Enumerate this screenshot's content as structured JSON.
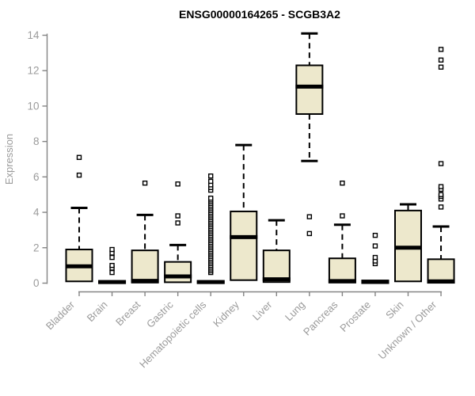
{
  "chart_data": {
    "type": "boxplot",
    "title": "ENSG00000164265 - SCGB3A2",
    "xlabel": "",
    "ylabel": "Expression",
    "ylim": [
      0,
      14
    ],
    "yticks": [
      0,
      2,
      4,
      6,
      8,
      10,
      12,
      14
    ],
    "grid": "off",
    "legend": "none",
    "box_fill": "#EDE8CC",
    "box_stroke": "#000000",
    "axis_color": "#848484",
    "label_color": "#9b9b9b",
    "title_color": "#000000",
    "categories": [
      "Bladder",
      "Brain",
      "Breast",
      "Gastric",
      "Hematopoietic cells",
      "Kidney",
      "Liver",
      "Lung",
      "Pancreas",
      "Prostate",
      "Skin",
      "Unknown / Other"
    ],
    "series": [
      {
        "name": "Bladder",
        "whisker_low": 0.05,
        "q1": 0.1,
        "median": 0.95,
        "q3": 1.9,
        "whisker_high": 4.25,
        "outliers": [
          6.1,
          7.1
        ]
      },
      {
        "name": "Brain",
        "whisker_low": 0,
        "q1": 0,
        "median": 0.06,
        "q3": 0.12,
        "whisker_high": 0.15,
        "outliers": [
          0.6,
          0.85,
          1.0,
          1.45,
          1.7,
          1.9
        ]
      },
      {
        "name": "Breast",
        "whisker_low": 0,
        "q1": 0.03,
        "median": 0.13,
        "q3": 1.85,
        "whisker_high": 3.85,
        "outliers": [
          5.65
        ]
      },
      {
        "name": "Gastric",
        "whisker_low": 0,
        "q1": 0.05,
        "median": 0.38,
        "q3": 1.2,
        "whisker_high": 2.15,
        "outliers": [
          3.4,
          3.8,
          5.6
        ]
      },
      {
        "name": "Hematopoietic cells",
        "whisker_low": 0,
        "q1": 0,
        "median": 0.06,
        "q3": 0.12,
        "whisker_high": 0.15,
        "outliers": [
          0.6,
          0.7,
          0.8,
          0.9,
          1.0,
          1.1,
          1.2,
          1.3,
          1.4,
          1.5,
          1.6,
          1.7,
          1.8,
          1.9,
          2.0,
          2.1,
          2.2,
          2.3,
          2.4,
          2.5,
          2.6,
          2.7,
          2.8,
          2.9,
          3.0,
          3.1,
          3.2,
          3.3,
          3.4,
          3.5,
          3.6,
          3.7,
          3.8,
          3.9,
          4.0,
          4.1,
          4.2,
          4.3,
          4.4,
          4.5,
          4.6,
          4.7,
          4.8,
          5.25,
          5.4,
          5.55,
          5.75,
          6.05
        ]
      },
      {
        "name": "Kidney",
        "whisker_low": 0.15,
        "q1": 0.17,
        "median": 2.6,
        "q3": 4.05,
        "whisker_high": 7.8,
        "outliers": []
      },
      {
        "name": "Liver",
        "whisker_low": 0.02,
        "q1": 0.06,
        "median": 0.22,
        "q3": 1.85,
        "whisker_high": 3.55,
        "outliers": []
      },
      {
        "name": "Lung",
        "whisker_low": 6.9,
        "q1": 9.55,
        "median": 11.1,
        "q3": 12.3,
        "whisker_high": 14.1,
        "outliers": [
          2.8,
          3.75
        ]
      },
      {
        "name": "Pancreas",
        "whisker_low": 0,
        "q1": 0.03,
        "median": 0.12,
        "q3": 1.4,
        "whisker_high": 3.3,
        "outliers": [
          3.8,
          5.65
        ]
      },
      {
        "name": "Prostate",
        "whisker_low": 0,
        "q1": 0,
        "median": 0.08,
        "q3": 0.15,
        "whisker_high": 0.18,
        "outliers": [
          1.1,
          1.25,
          1.45,
          2.1,
          2.7
        ]
      },
      {
        "name": "Skin",
        "whisker_low": 0.05,
        "q1": 0.1,
        "median": 2.0,
        "q3": 4.1,
        "whisker_high": 4.45,
        "outliers": []
      },
      {
        "name": "Unknown / Other",
        "whisker_low": 0,
        "q1": 0.02,
        "median": 0.1,
        "q3": 1.35,
        "whisker_high": 3.2,
        "outliers": [
          4.3,
          4.75,
          4.9,
          5.0,
          5.3,
          5.45,
          6.75,
          12.2,
          12.6,
          13.2
        ]
      }
    ]
  }
}
